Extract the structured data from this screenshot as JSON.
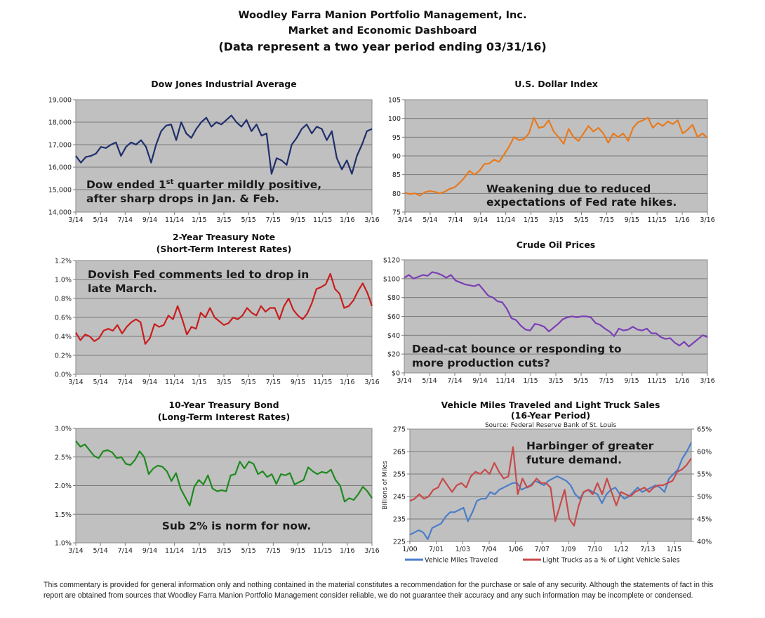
{
  "header": {
    "line1": "Woodley Farra Manion Portfolio Management, Inc.",
    "line2": "Market and Economic Dashboard",
    "line3": "(Data represent a two year period ending 03/31/16)"
  },
  "disclaimer": "This commentary is provided for general information only and nothing contained in the material constitutes a recommendation for the purchase or sale of any security. Although the statements of fact in this report are obtained from sources that Woodley Farra Manion Portfolio Management consider reliable, we do not guarantee their accuracy and any such information may be incomplete or condensed.",
  "chart_data": [
    {
      "id": "dow",
      "type": "line",
      "title": [
        "Dow Jones Industrial Average"
      ],
      "xlabel": "",
      "ylabel": "",
      "x_ticks": [
        "3/14",
        "5/14",
        "7/14",
        "9/14",
        "11/14",
        "1/15",
        "3/15",
        "5/15",
        "7/15",
        "9/15",
        "11/15",
        "1/16",
        "3/16"
      ],
      "y_ticks": [
        "14,000",
        "15,000",
        "16,000",
        "17,000",
        "18,000",
        "19,000"
      ],
      "ylim": [
        14000,
        19000
      ],
      "grid": true,
      "color": "#1f2f6b",
      "annotation": [
        "Dow ended 1st quarter mildly positive,",
        "after sharp drops in Jan. & Feb."
      ],
      "series": [
        {
          "name": "DJIA",
          "values": [
            16500,
            16200,
            16450,
            16500,
            16600,
            16900,
            16850,
            17000,
            17100,
            16500,
            16900,
            17100,
            17000,
            17200,
            16900,
            16200,
            17000,
            17600,
            17850,
            17900,
            17200,
            18000,
            17500,
            17300,
            17700,
            18000,
            18200,
            17800,
            18000,
            17900,
            18100,
            18300,
            18000,
            17800,
            18100,
            17600,
            17900,
            17400,
            17500,
            15700,
            16400,
            16300,
            16100,
            17000,
            17300,
            17700,
            17900,
            17500,
            17800,
            17700,
            17200,
            17600,
            16400,
            15900,
            16300,
            15700,
            16500,
            17000,
            17600,
            17700
          ]
        }
      ]
    },
    {
      "id": "usd",
      "type": "line",
      "title": [
        "U.S. Dollar Index"
      ],
      "xlabel": "",
      "ylabel": "",
      "x_ticks": [
        "3/14",
        "5/14",
        "7/14",
        "9/14",
        "11/14",
        "1/15",
        "3/15",
        "5/15",
        "7/15",
        "9/15",
        "11/15",
        "1/16",
        "3/16"
      ],
      "y_ticks": [
        "75",
        "80",
        "85",
        "90",
        "95",
        "100",
        "105"
      ],
      "ylim": [
        75,
        105
      ],
      "grid": true,
      "color": "#e87a1e",
      "annotation": [
        "Weakening due to reduced",
        "expectations of Fed rate hikes."
      ],
      "series": [
        {
          "name": "DXY",
          "values": [
            80.2,
            79.8,
            80.0,
            79.4,
            80.3,
            80.6,
            80.4,
            80.0,
            80.4,
            81.2,
            81.6,
            82.8,
            84.2,
            86.0,
            85.0,
            86.0,
            87.8,
            88.0,
            89.0,
            88.4,
            90.4,
            92.5,
            95.0,
            94.2,
            94.5,
            96.0,
            100.2,
            97.5,
            97.8,
            99.5,
            96.5,
            95.0,
            93.2,
            97.2,
            95.0,
            94.0,
            96.0,
            98.0,
            96.5,
            97.5,
            96.0,
            93.5,
            96.0,
            95.0,
            96.0,
            94.0,
            97.5,
            99.0,
            99.5,
            100.2,
            97.5,
            98.8,
            98.0,
            99.2,
            98.5,
            99.5,
            96.0,
            97.0,
            98.3,
            95.0,
            96.0,
            94.8
          ]
        }
      ]
    },
    {
      "id": "t2y",
      "type": "line",
      "title": [
        "2-Year Treasury Note",
        "(Short-Term Interest Rates)"
      ],
      "xlabel": "",
      "ylabel": "",
      "x_ticks": [
        "3/14",
        "5/14",
        "7/14",
        "9/14",
        "11/14",
        "1/15",
        "3/15",
        "5/15",
        "7/15",
        "9/15",
        "11/15",
        "1/16",
        "3/16"
      ],
      "y_ticks": [
        "0.0%",
        "0.2%",
        "0.4%",
        "0.6%",
        "0.8%",
        "1.0%",
        "1.2%"
      ],
      "ylim": [
        0.0,
        1.2
      ],
      "grid": true,
      "color": "#c81e1e",
      "annotation": [
        "Dovish Fed comments led to drop in",
        "late March."
      ],
      "series": [
        {
          "name": "2Y",
          "values": [
            0.44,
            0.36,
            0.42,
            0.4,
            0.35,
            0.38,
            0.46,
            0.48,
            0.46,
            0.52,
            0.43,
            0.5,
            0.55,
            0.58,
            0.55,
            0.32,
            0.38,
            0.53,
            0.5,
            0.52,
            0.62,
            0.58,
            0.72,
            0.58,
            0.42,
            0.5,
            0.48,
            0.65,
            0.6,
            0.7,
            0.6,
            0.56,
            0.52,
            0.54,
            0.6,
            0.58,
            0.62,
            0.7,
            0.65,
            0.62,
            0.72,
            0.66,
            0.7,
            0.7,
            0.58,
            0.72,
            0.8,
            0.68,
            0.62,
            0.58,
            0.64,
            0.75,
            0.9,
            0.92,
            0.95,
            1.06,
            0.9,
            0.85,
            0.7,
            0.72,
            0.78,
            0.88,
            0.96,
            0.86,
            0.72
          ]
        }
      ]
    },
    {
      "id": "oil",
      "type": "line",
      "title": [
        "Crude Oil Prices"
      ],
      "xlabel": "",
      "ylabel": "",
      "x_ticks": [
        "3/14",
        "5/14",
        "7/14",
        "9/14",
        "11/14",
        "1/15",
        "3/15",
        "5/15",
        "7/15",
        "9/15",
        "11/15",
        "1/16",
        "3/16"
      ],
      "y_ticks": [
        "$0",
        "$20",
        "$40",
        "$60",
        "$80",
        "$100",
        "$120"
      ],
      "ylim": [
        0,
        120
      ],
      "grid": true,
      "color": "#7b3fb5",
      "annotation": [
        "Dead-cat bounce or responding to",
        "more production cuts?"
      ],
      "series": [
        {
          "name": "WTI",
          "values": [
            101,
            104,
            100,
            102,
            104,
            103,
            107,
            106,
            104,
            101,
            104,
            98,
            96,
            94,
            93,
            92,
            94,
            88,
            82,
            80,
            76,
            75,
            68,
            58,
            56,
            50,
            46,
            45,
            52,
            51,
            49,
            44,
            48,
            52,
            57,
            59,
            60,
            59,
            60,
            60,
            59,
            53,
            51,
            47,
            44,
            39,
            47,
            45,
            46,
            49,
            46,
            45,
            47,
            42,
            42,
            38,
            36,
            37,
            32,
            29,
            33,
            28,
            32,
            36,
            40,
            38
          ]
        }
      ]
    },
    {
      "id": "t10y",
      "type": "line",
      "title": [
        "10-Year Treasury Bond",
        "(Long-Term Interest Rates)"
      ],
      "xlabel": "",
      "ylabel": "",
      "x_ticks": [
        "3/14",
        "5/14",
        "7/14",
        "9/14",
        "11/14",
        "1/15",
        "3/15",
        "5/15",
        "7/15",
        "9/15",
        "11/15",
        "1/16",
        "3/16"
      ],
      "y_ticks": [
        "1.0%",
        "1.5%",
        "2.0%",
        "2.5%",
        "3.0%"
      ],
      "ylim": [
        1.0,
        3.0
      ],
      "grid": true,
      "color": "#1e8a1e",
      "annotation": [
        "Sub 2% is norm for now."
      ],
      "series": [
        {
          "name": "10Y",
          "values": [
            2.78,
            2.68,
            2.72,
            2.62,
            2.52,
            2.48,
            2.6,
            2.62,
            2.58,
            2.48,
            2.5,
            2.38,
            2.36,
            2.45,
            2.6,
            2.5,
            2.2,
            2.3,
            2.35,
            2.33,
            2.25,
            2.08,
            2.22,
            1.95,
            1.8,
            1.65,
            1.98,
            2.1,
            2.02,
            2.18,
            1.95,
            1.9,
            1.92,
            1.9,
            2.18,
            2.2,
            2.42,
            2.3,
            2.42,
            2.38,
            2.2,
            2.25,
            2.15,
            2.2,
            2.03,
            2.2,
            2.18,
            2.22,
            2.02,
            2.06,
            2.1,
            2.32,
            2.25,
            2.2,
            2.24,
            2.22,
            2.28,
            2.1,
            2.0,
            1.72,
            1.78,
            1.75,
            1.85,
            1.98,
            1.9,
            1.78
          ]
        }
      ]
    },
    {
      "id": "vmt",
      "type": "line",
      "title": [
        "Vehicle Miles Traveled and Light Truck Sales",
        "(16-Year Period)"
      ],
      "subtitle": "Source:  Federal Reserve Bank of St. Louis",
      "xlabel": "",
      "ylabel": "Billions of Miles",
      "x_ticks": [
        "1/00",
        "7/01",
        "1/03",
        "7/04",
        "1/06",
        "7/07",
        "1/09",
        "7/10",
        "1/12",
        "7/13",
        "1/15"
      ],
      "y_ticks": [
        "225",
        "235",
        "245",
        "255",
        "265",
        "275"
      ],
      "y2_ticks": [
        "40%",
        "45%",
        "50%",
        "55%",
        "60%",
        "65%"
      ],
      "ylim": [
        225,
        275
      ],
      "y2lim": [
        40,
        65
      ],
      "grid": true,
      "legend": "bottom",
      "annotation": [
        "Harbinger of greater",
        "future demand."
      ],
      "series": [
        {
          "name": "Vehicle Miles Traveled",
          "axis": "left",
          "color": "#4a7ec8",
          "values": [
            228,
            229,
            230,
            229,
            226,
            231,
            232,
            233,
            236,
            238,
            238,
            239,
            240,
            234,
            238,
            243,
            244,
            244,
            247,
            246,
            248,
            249,
            250,
            251,
            251,
            248,
            249,
            250,
            252,
            251,
            250,
            252,
            253,
            254,
            253,
            252,
            250,
            246,
            244,
            247,
            248,
            247,
            246,
            242,
            246,
            248,
            249,
            246,
            244,
            245,
            247,
            249,
            247,
            248,
            249,
            250,
            249,
            247,
            253,
            255,
            257,
            262,
            265,
            269
          ]
        },
        {
          "name": "Light Trucks as a % of Light Vehicle Sales",
          "axis": "right",
          "color": "#c84a4a",
          "values": [
            49,
            49.5,
            50.5,
            49.5,
            50,
            51.5,
            52,
            54,
            52.5,
            51,
            52.5,
            53,
            52,
            54.5,
            55.5,
            55,
            56,
            55,
            57.5,
            55.5,
            54,
            54.5,
            61,
            50.5,
            54,
            52,
            52.5,
            54,
            53,
            53,
            52,
            44.5,
            48,
            51.5,
            45,
            43.5,
            48,
            51,
            51.5,
            50.5,
            53,
            50.5,
            54,
            51,
            48,
            51,
            50.5,
            50,
            51,
            51.5,
            52,
            51,
            52,
            52.5,
            52.5,
            53,
            53.5,
            55.5,
            56,
            57,
            58.5
          ]
        }
      ]
    }
  ]
}
